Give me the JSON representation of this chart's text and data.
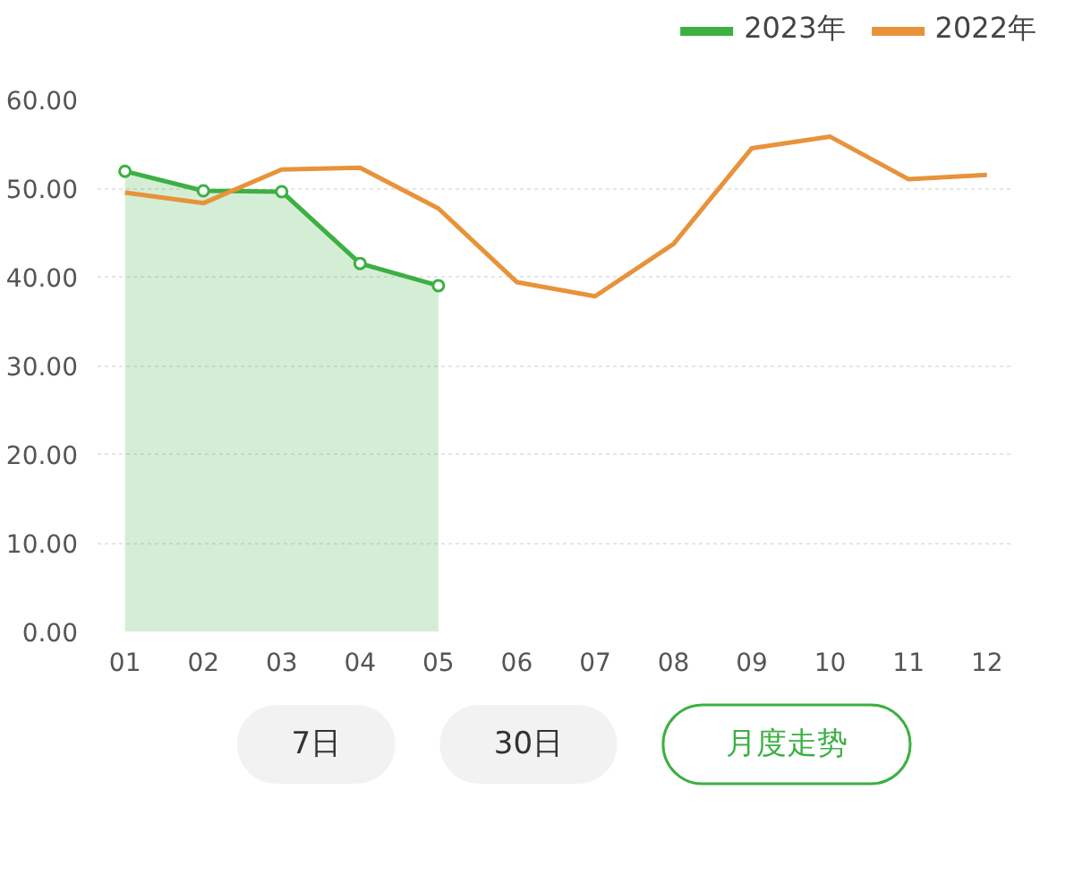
{
  "chart_data": {
    "type": "area",
    "categories": [
      "01",
      "02",
      "03",
      "04",
      "05",
      "06",
      "07",
      "08",
      "09",
      "10",
      "11",
      "12"
    ],
    "series": [
      {
        "name": "2023年",
        "color": "#3cb043",
        "marker": "circle",
        "values": [
          51.9,
          49.7,
          49.6,
          41.5,
          39.0,
          null,
          null,
          null,
          null,
          null,
          null,
          null
        ]
      },
      {
        "name": "2022年",
        "color": "#e8923a",
        "type": "line",
        "marker": "none",
        "values": [
          49.5,
          48.3,
          52.1,
          52.3,
          47.7,
          39.4,
          37.8,
          43.7,
          54.5,
          55.8,
          51.0,
          51.5
        ]
      }
    ],
    "ylim": [
      0,
      60
    ],
    "yticks": [
      {
        "value": 0,
        "label": "0.00"
      },
      {
        "value": 10,
        "label": "10.00"
      },
      {
        "value": 20,
        "label": "20.00"
      },
      {
        "value": 30,
        "label": "30.00"
      },
      {
        "value": 40,
        "label": "40.00"
      },
      {
        "value": 50,
        "label": "50.00"
      },
      {
        "value": 60,
        "label": "60.00"
      }
    ],
    "grid": "y",
    "legend": "top right",
    "annotations": [
      "7日",
      "30日",
      "月度走势"
    ]
  }
}
